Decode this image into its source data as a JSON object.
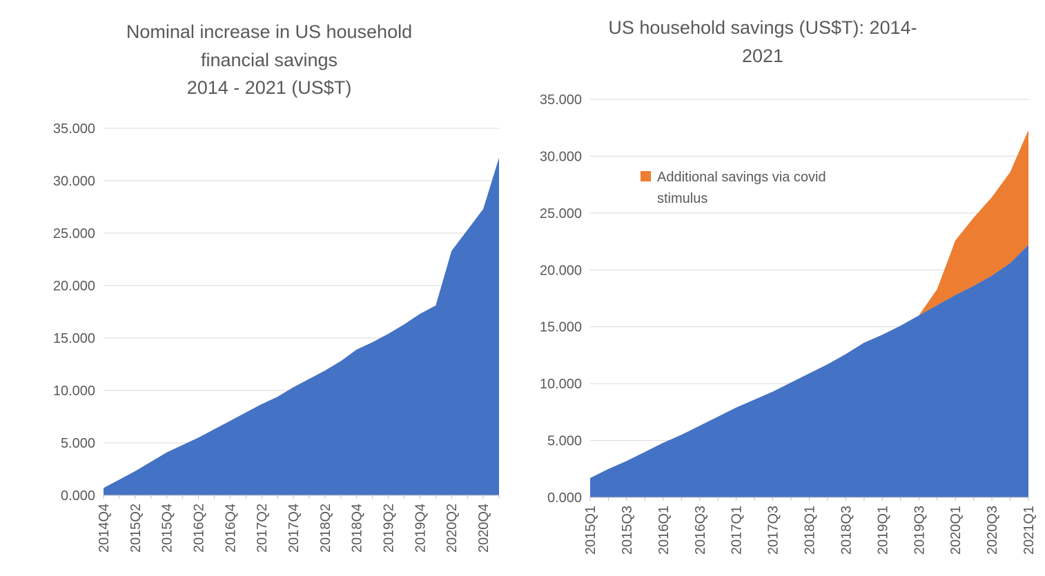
{
  "page": {
    "background": "#ffffff",
    "text_color": "#595959",
    "grid_color": "#d9d9d9",
    "axis_color": "#bfbfbf"
  },
  "chart_data": [
    {
      "type": "area",
      "title": "Nominal increase in US household\nfinancial savings\n2014 - 2021 (US$T)",
      "xlabel": "",
      "ylabel": "",
      "ylim": [
        0,
        35
      ],
      "grid": true,
      "legend_position": "none",
      "yticks": [
        {
          "value": 0,
          "label": "0.000"
        },
        {
          "value": 5,
          "label": "5.000"
        },
        {
          "value": 10,
          "label": "10.000"
        },
        {
          "value": 15,
          "label": "15.000"
        },
        {
          "value": 20,
          "label": "20.000"
        },
        {
          "value": 25,
          "label": "25.000"
        },
        {
          "value": 30,
          "label": "30.000"
        },
        {
          "value": 35,
          "label": "35.000"
        }
      ],
      "categories": [
        "2014Q4",
        "2015Q1",
        "2015Q2",
        "2015Q3",
        "2015Q4",
        "2016Q1",
        "2016Q2",
        "2016Q3",
        "2016Q4",
        "2017Q1",
        "2017Q2",
        "2017Q3",
        "2017Q4",
        "2018Q1",
        "2018Q2",
        "2018Q3",
        "2018Q4",
        "2019Q1",
        "2019Q2",
        "2019Q3",
        "2019Q4",
        "2020Q1",
        "2020Q2",
        "2020Q3",
        "2020Q4",
        "2021Q1"
      ],
      "xtick_label_step": 2,
      "series": [
        {
          "color": "#4472c4",
          "values": [
            0.7,
            1.5,
            2.3,
            3.2,
            4.1,
            4.8,
            5.5,
            6.3,
            7.1,
            7.9,
            8.7,
            9.4,
            10.3,
            11.1,
            11.9,
            12.8,
            13.9,
            14.6,
            15.4,
            16.3,
            17.3,
            18.1,
            23.3,
            25.3,
            27.3,
            32.2
          ]
        }
      ]
    },
    {
      "type": "area",
      "title": "US household savings (US$T): 2014-\n2021",
      "xlabel": "",
      "ylabel": "",
      "ylim": [
        0,
        35
      ],
      "grid": true,
      "legend_position": "inside-top-left",
      "yticks": [
        {
          "value": 0,
          "label": "0.000"
        },
        {
          "value": 5,
          "label": "5.000"
        },
        {
          "value": 10,
          "label": "10.000"
        },
        {
          "value": 15,
          "label": "15.000"
        },
        {
          "value": 20,
          "label": "20.000"
        },
        {
          "value": 25,
          "label": "25.000"
        },
        {
          "value": 30,
          "label": "30.000"
        },
        {
          "value": 35,
          "label": "35.000"
        }
      ],
      "categories": [
        "2015Q1",
        "2015Q2",
        "2015Q3",
        "2015Q4",
        "2016Q1",
        "2016Q2",
        "2016Q3",
        "2016Q4",
        "2017Q1",
        "2017Q2",
        "2017Q3",
        "2017Q4",
        "2018Q1",
        "2018Q2",
        "2018Q3",
        "2018Q4",
        "2019Q1",
        "2019Q2",
        "2019Q3",
        "2019Q4",
        "2020Q1",
        "2020Q2",
        "2020Q3",
        "2020Q4",
        "2021Q1"
      ],
      "xtick_label_step": 2,
      "series": [
        {
          "color": "#4472c4",
          "values": [
            1.7,
            2.5,
            3.2,
            4.0,
            4.8,
            5.5,
            6.3,
            7.1,
            7.9,
            8.6,
            9.3,
            10.1,
            10.9,
            11.7,
            12.6,
            13.6,
            14.3,
            15.1,
            16.0,
            16.9,
            17.8,
            18.6,
            19.5,
            20.6,
            22.2
          ]
        },
        {
          "name": "Additional savings via covid stimulus",
          "color": "#ed7d31",
          "values": [
            0,
            0,
            0,
            0,
            0,
            0,
            0,
            0,
            0,
            0,
            0,
            0,
            0,
            0,
            0,
            0,
            0,
            0,
            0,
            1.4,
            4.8,
            6.0,
            6.9,
            8.0,
            10.1
          ]
        }
      ]
    }
  ]
}
